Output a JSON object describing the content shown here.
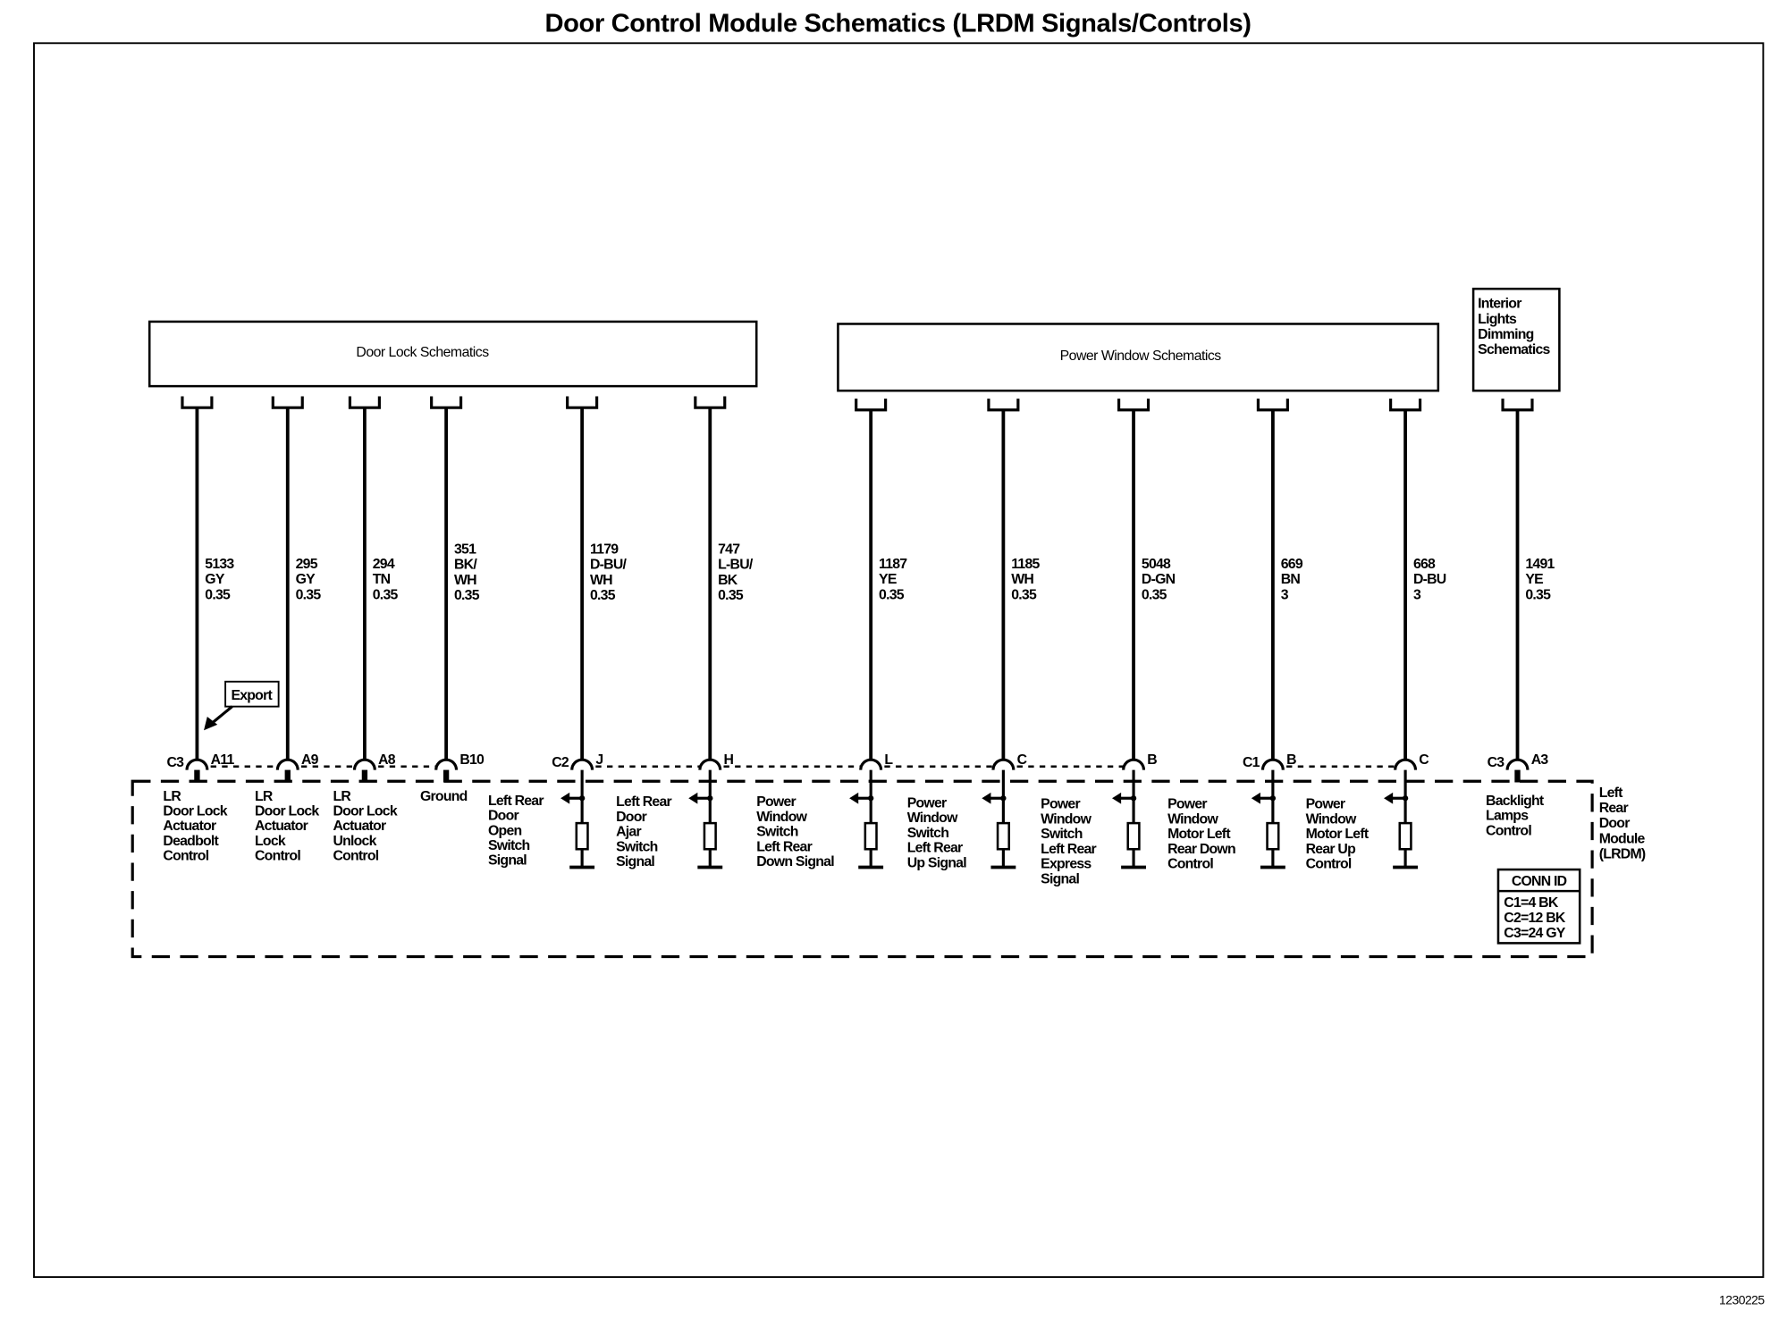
{
  "title": "Door Control Module Schematics (LRDM Signals/Controls)",
  "figure_number": "1230225",
  "blocks": {
    "door_lock": "Door Lock Schematics",
    "power_window": "Power Window Schematics",
    "interior_lights": [
      "Interior",
      "Lights",
      "Dimming",
      "Schematics"
    ]
  },
  "export_label": "Export",
  "module_label": [
    "Left",
    "Rear",
    "Door",
    "Module",
    "(LRDM)"
  ],
  "conn_id": {
    "header": "CONN ID",
    "rows": [
      "C1=4 BK",
      "C2=12 BK",
      "C3=24 GY"
    ]
  },
  "circuits": [
    {
      "wire": [
        "5133",
        "GY",
        "0.35"
      ],
      "connector": "C3",
      "pin": "A11",
      "input": false,
      "label": [
        "LR",
        "Door Lock",
        "Actuator",
        "Deadbolt",
        "Control"
      ]
    },
    {
      "wire": [
        "295",
        "GY",
        "0.35"
      ],
      "connector": "",
      "pin": "A9",
      "input": false,
      "label": [
        "LR",
        "Door Lock",
        "Actuator",
        "Lock",
        "Control"
      ]
    },
    {
      "wire": [
        "294",
        "TN",
        "0.35"
      ],
      "connector": "",
      "pin": "A8",
      "input": false,
      "label": [
        "LR",
        "Door Lock",
        "Actuator",
        "Unlock",
        "Control"
      ]
    },
    {
      "wire": [
        "351",
        "BK/",
        "WH",
        "0.35"
      ],
      "connector": "",
      "pin": "B10",
      "input": false,
      "label": [
        "Ground"
      ]
    },
    {
      "wire": [
        "1179",
        "D-BU/",
        "WH",
        "0.35"
      ],
      "connector": "C2",
      "pin": "J",
      "input": true,
      "label": [
        "Left Rear",
        "Door",
        "Open",
        "Switch",
        "Signal"
      ]
    },
    {
      "wire": [
        "747",
        "L-BU/",
        "BK",
        "0.35"
      ],
      "connector": "",
      "pin": "H",
      "input": true,
      "label": [
        "Left Rear",
        "Door",
        "Ajar",
        "Switch",
        "Signal"
      ]
    },
    {
      "wire": [
        "1187",
        "YE",
        "0.35"
      ],
      "connector": "",
      "pin": "L",
      "input": true,
      "label": [
        "Power",
        "Window",
        "Switch",
        "Left Rear",
        "Down Signal"
      ]
    },
    {
      "wire": [
        "1185",
        "WH",
        "0.35"
      ],
      "connector": "",
      "pin": "C",
      "input": true,
      "label": [
        "Power",
        "Window",
        "Switch",
        "Left Rear",
        "Up Signal"
      ]
    },
    {
      "wire": [
        "5048",
        "D-GN",
        "0.35"
      ],
      "connector": "",
      "pin": "B",
      "input": true,
      "label": [
        "Power",
        "Window",
        "Switch",
        "Left Rear",
        "Express",
        "Signal"
      ]
    },
    {
      "wire": [
        "669",
        "BN",
        "3"
      ],
      "connector": "C1",
      "pin": "B",
      "input": true,
      "label": [
        "Power",
        "Window",
        "Motor Left",
        "Rear Down",
        "Control"
      ]
    },
    {
      "wire": [
        "668",
        "D-BU",
        "3"
      ],
      "connector": "",
      "pin": "C",
      "input": true,
      "label": [
        "Power",
        "Window",
        "Motor Left",
        "Rear Up",
        "Control"
      ]
    },
    {
      "wire": [
        "1491",
        "YE",
        "0.35"
      ],
      "connector": "C3",
      "pin": "A3",
      "input": false,
      "label": [
        "Backlight",
        "Lamps",
        "Control"
      ]
    }
  ]
}
